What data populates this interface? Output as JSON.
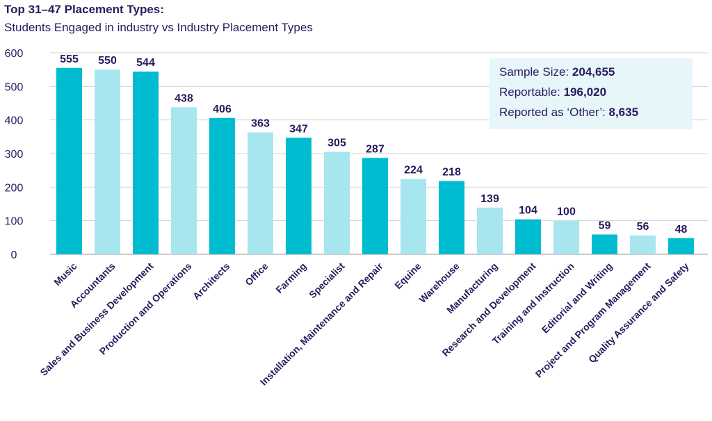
{
  "title": "Top 31–47 Placement Types:",
  "subtitle": "Students Engaged in industry vs Industry Placement Types",
  "info": {
    "sample_size_label": "Sample Size:",
    "sample_size_value": "204,655",
    "reportable_label": "Reportable:",
    "reportable_value": "196,020",
    "other_label": "Reported as ‘Other’:",
    "other_value": "8,635"
  },
  "chart_data": {
    "type": "bar",
    "title": "Top 31–47 Placement Types:",
    "subtitle": "Students Engaged in industry vs Industry Placement Types",
    "categories": [
      "Music",
      "Accountants",
      "Sales and Business Development",
      "Production and Operations",
      "Architects",
      "Office",
      "Farming",
      "Specialist",
      "Installation, Maintenance and Repair",
      "Equine",
      "Warehouse",
      "Manufacturing",
      "Research and Development",
      "Training and Instruction",
      "Editorial and Writing",
      "Project and Program Management",
      "Quality Assurance and Safety"
    ],
    "values": [
      555,
      550,
      544,
      438,
      406,
      363,
      347,
      305,
      287,
      224,
      218,
      139,
      104,
      100,
      59,
      56,
      48
    ],
    "yticks": [
      0,
      100,
      200,
      300,
      400,
      500,
      600
    ],
    "ylim": [
      0,
      600
    ],
    "xlabel": "",
    "ylabel": "",
    "grid": true,
    "colors": [
      "#00bcd1",
      "#a8e6ef"
    ]
  }
}
